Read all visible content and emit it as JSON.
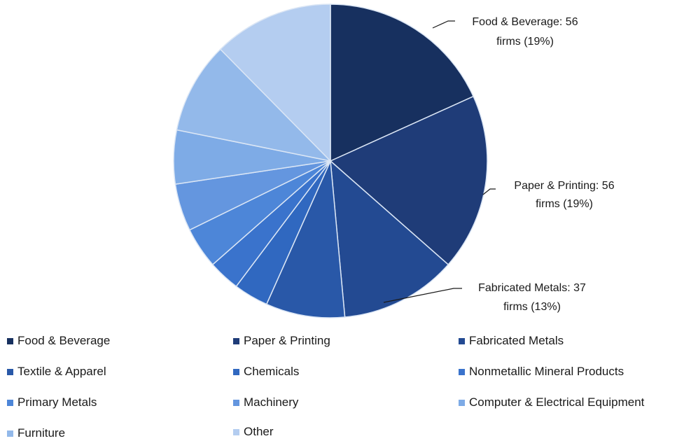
{
  "chart_data": {
    "type": "pie",
    "title": "",
    "categories": [
      "Food & Beverage",
      "Paper & Printing",
      "Fabricated Metals",
      "Textile & Apparel",
      "Chemicals",
      "Nonmetallic Mineral Products",
      "Primary Metals",
      "Machinery",
      "Computer & Electrical Equipment",
      "Furniture",
      "Other"
    ],
    "values": [
      56,
      56,
      37,
      25,
      11,
      10,
      13,
      15,
      17,
      29,
      38
    ],
    "colors": [
      "#17305f",
      "#1f3c78",
      "#234a92",
      "#2958a8",
      "#3068c0",
      "#3a73cc",
      "#4d86d8",
      "#6496df",
      "#7eabe6",
      "#93b9ea",
      "#b4cdf0"
    ],
    "slice_edge_color": "#dbe6f5",
    "legend_position": "bottom",
    "annotations": [
      {
        "category": "Food & Beverage",
        "line1": "Food & Beverage: 56",
        "line2": "firms (19%)"
      },
      {
        "category": "Paper & Printing",
        "line1": "Paper & Printing: 56",
        "line2": "firms (19%)"
      },
      {
        "category": "Fabricated Metals",
        "line1": "Fabricated Metals: 37",
        "line2": "firms (13%)"
      }
    ]
  }
}
